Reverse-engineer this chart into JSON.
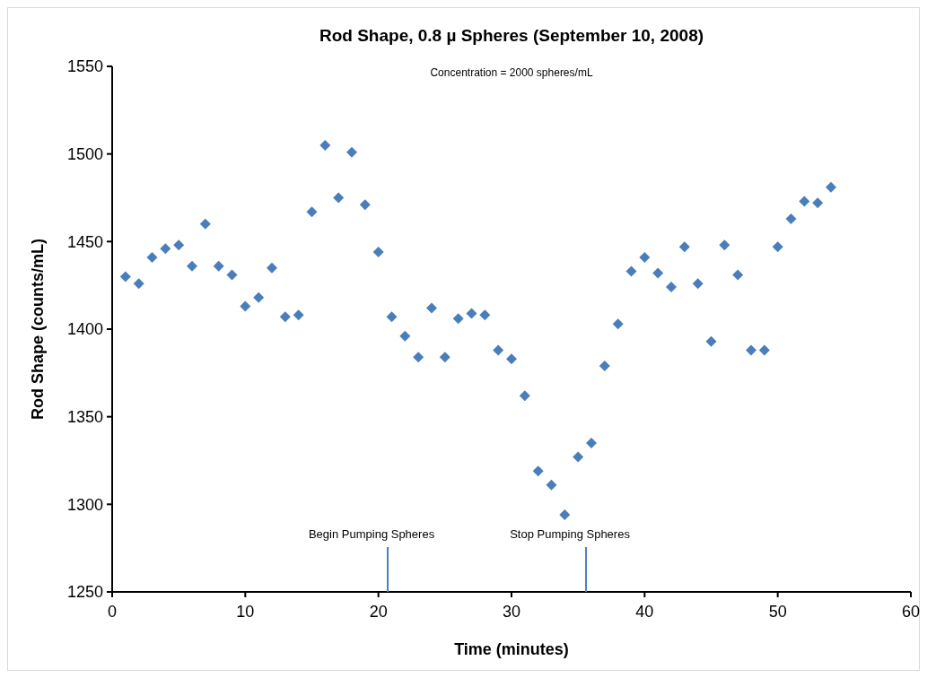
{
  "chart_data": {
    "type": "scatter",
    "title": "Rod Shape, 0.8 µ Spheres (September 10, 2008)",
    "xlabel": "Time (minutes)",
    "ylabel": "Rod Shape (counts/mL)",
    "annotations": [
      "Concentration = 2000 spheres/mL"
    ],
    "x": [
      1,
      2,
      3,
      4,
      5,
      6,
      7,
      8,
      9,
      10,
      11,
      12,
      13,
      14,
      15,
      16,
      17,
      18,
      19,
      20,
      21,
      22,
      23,
      24,
      25,
      26,
      27,
      28,
      29,
      30,
      31,
      32,
      33,
      34,
      35,
      36,
      37,
      38,
      39,
      40,
      41,
      42,
      43,
      44,
      45,
      46,
      47,
      48,
      49,
      50,
      51,
      52,
      53,
      54
    ],
    "series": [
      {
        "color": "#4a7ebb",
        "values": [
          1430,
          1426,
          1441,
          1446,
          1448,
          1436,
          1460,
          1436,
          1431,
          1413,
          1418,
          1435,
          1407,
          1408,
          1467,
          1505,
          1475,
          1501,
          1471,
          1444,
          1407,
          1396,
          1384,
          1412,
          1384,
          1406,
          1409,
          1408,
          1388,
          1383,
          1362,
          1319,
          1311,
          1294,
          1327,
          1335,
          1379,
          1403,
          1433,
          1441,
          1432,
          1424,
          1447,
          1426,
          1393,
          1448,
          1431,
          1388,
          1388,
          1447,
          1463,
          1473,
          1472,
          1481
        ]
      }
    ],
    "xlim": [
      0,
      60
    ],
    "xticks": [
      0,
      10,
      20,
      30,
      40,
      50,
      60
    ],
    "ylim": [
      1250,
      1550
    ],
    "yticks": [
      1250,
      1300,
      1350,
      1400,
      1450,
      1500,
      1550
    ],
    "marker": "diamond",
    "grid": false,
    "ref_lines": [
      {
        "axis": "x",
        "value": 20.7,
        "label": "Begin Pumping Spheres",
        "color": "#4a7ebb"
      },
      {
        "axis": "x",
        "value": 35.6,
        "label": "Stop Pumping Spheres",
        "color": "#4a7ebb"
      }
    ]
  }
}
